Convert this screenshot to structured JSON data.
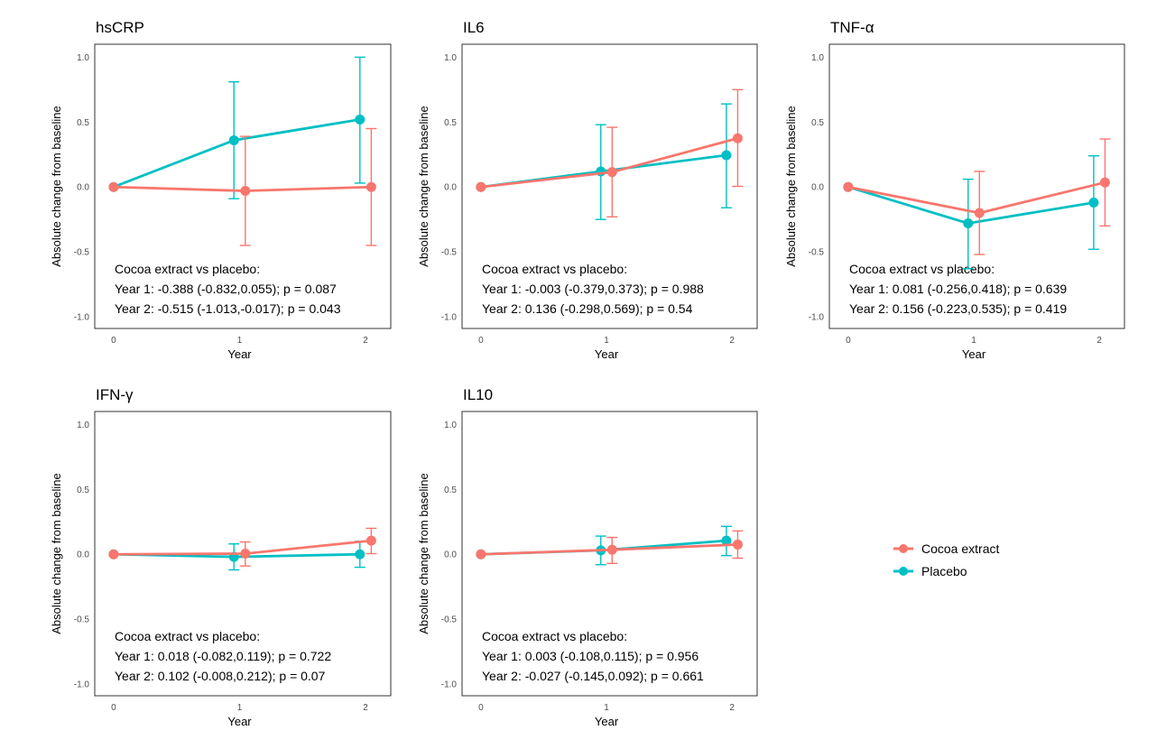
{
  "chart_data": {
    "type": "line",
    "legend": {
      "position": "right",
      "entries": [
        {
          "name": "Cocoa extract",
          "color": "#F8766D"
        },
        {
          "name": "Placebo",
          "color": "#00BFC4"
        }
      ]
    },
    "panels": [
      {
        "title": "hsCRP",
        "xlabel": "Year",
        "ylabel": "Absolute change from baseline",
        "x_ticks": [
          "0",
          "1",
          "2"
        ],
        "y_ticks": [
          "1.0",
          "0.5",
          "0.0",
          "-0.5",
          "-1.0"
        ],
        "ylim": [
          -1.09,
          1.1
        ],
        "xlim": [
          -0.15,
          2.2
        ],
        "series": [
          {
            "name": "Cocoa extract",
            "x": [
              0,
              1,
              2
            ],
            "y": [
              0,
              -0.03,
              0.0
            ],
            "ci_low": [
              null,
              -0.45,
              -0.45
            ],
            "ci_high": [
              null,
              0.39,
              0.45
            ]
          },
          {
            "name": "Placebo",
            "x": [
              0,
              1,
              2
            ],
            "y": [
              0,
              0.36,
              0.52
            ],
            "ci_low": [
              null,
              -0.09,
              0.03
            ],
            "ci_high": [
              null,
              0.81,
              1.0
            ]
          }
        ],
        "annotation": [
          "Cocoa extract vs placebo:",
          "Year 1: -0.388 (-0.832,0.055); p = 0.087",
          "Year 2: -0.515 (-1.013,-0.017); p = 0.043"
        ]
      },
      {
        "title": "IL6",
        "xlabel": "Year",
        "ylabel": "Absolute change from baseline",
        "x_ticks": [
          "0",
          "1",
          "2"
        ],
        "y_ticks": [
          "1.0",
          "0.5",
          "0.0",
          "-0.5",
          "-1.0"
        ],
        "ylim": [
          -1.09,
          1.1
        ],
        "xlim": [
          -0.15,
          2.2
        ],
        "series": [
          {
            "name": "Cocoa extract",
            "x": [
              0,
              1,
              2
            ],
            "y": [
              0,
              0.115,
              0.375
            ],
            "ci_low": [
              null,
              -0.23,
              0.005
            ],
            "ci_high": [
              null,
              0.46,
              0.75
            ]
          },
          {
            "name": "Placebo",
            "x": [
              0,
              1,
              2
            ],
            "y": [
              0,
              0.12,
              0.245
            ],
            "ci_low": [
              null,
              -0.25,
              -0.16
            ],
            "ci_high": [
              null,
              0.48,
              0.64
            ]
          }
        ],
        "annotation": [
          "Cocoa extract vs placebo:",
          "Year 1: -0.003 (-0.379,0.373); p = 0.988",
          "Year 2: 0.136 (-0.298,0.569); p = 0.54"
        ]
      },
      {
        "title": "TNF-α",
        "xlabel": "Year",
        "ylabel": "Absolute change from baseline",
        "x_ticks": [
          "0",
          "1",
          "2"
        ],
        "y_ticks": [
          "1.0",
          "0.5",
          "0.0",
          "-0.5",
          "-1.0"
        ],
        "ylim": [
          -1.09,
          1.1
        ],
        "xlim": [
          -0.15,
          2.2
        ],
        "series": [
          {
            "name": "Cocoa extract",
            "x": [
              0,
              1,
              2
            ],
            "y": [
              0,
              -0.2,
              0.035
            ],
            "ci_low": [
              null,
              -0.52,
              -0.3
            ],
            "ci_high": [
              null,
              0.12,
              0.37
            ]
          },
          {
            "name": "Placebo",
            "x": [
              0,
              1,
              2
            ],
            "y": [
              0,
              -0.28,
              -0.12
            ],
            "ci_low": [
              null,
              -0.63,
              -0.48
            ],
            "ci_high": [
              null,
              0.06,
              0.24
            ]
          }
        ],
        "annotation": [
          "Cocoa extract vs placebo:",
          "Year 1: 0.081 (-0.256,0.418); p = 0.639",
          "Year 2: 0.156 (-0.223,0.535); p = 0.419"
        ]
      },
      {
        "title": "IFN-γ",
        "xlabel": "Year",
        "ylabel": "Absolute change from baseline",
        "x_ticks": [
          "0",
          "1",
          "2"
        ],
        "y_ticks": [
          "1.0",
          "0.5",
          "0.0",
          "-0.5",
          "-1.0"
        ],
        "ylim": [
          -1.09,
          1.1
        ],
        "xlim": [
          -0.15,
          2.2
        ],
        "series": [
          {
            "name": "Cocoa extract",
            "x": [
              0,
              1,
              2
            ],
            "y": [
              0,
              0.005,
              0.105
            ],
            "ci_low": [
              null,
              -0.09,
              0.005
            ],
            "ci_high": [
              null,
              0.095,
              0.2
            ]
          },
          {
            "name": "Placebo",
            "x": [
              0,
              1,
              2
            ],
            "y": [
              0,
              -0.02,
              0.0
            ],
            "ci_low": [
              null,
              -0.12,
              -0.1
            ],
            "ci_high": [
              null,
              0.08,
              0.1
            ]
          }
        ],
        "annotation": [
          "Cocoa extract vs placebo:",
          "Year 1: 0.018 (-0.082,0.119); p = 0.722",
          "Year 2: 0.102 (-0.008,0.212); p = 0.07"
        ]
      },
      {
        "title": "IL10",
        "xlabel": "Year",
        "ylabel": "Absolute change from baseline",
        "x_ticks": [
          "0",
          "1",
          "2"
        ],
        "y_ticks": [
          "1.0",
          "0.5",
          "0.0",
          "-0.5",
          "-1.0"
        ],
        "ylim": [
          -1.09,
          1.1
        ],
        "xlim": [
          -0.15,
          2.2
        ],
        "series": [
          {
            "name": "Cocoa extract",
            "x": [
              0,
              1,
              2
            ],
            "y": [
              0,
              0.035,
              0.075
            ],
            "ci_low": [
              null,
              -0.07,
              -0.03
            ],
            "ci_high": [
              null,
              0.13,
              0.18
            ]
          },
          {
            "name": "Placebo",
            "x": [
              0,
              1,
              2
            ],
            "y": [
              0,
              0.03,
              0.105
            ],
            "ci_low": [
              null,
              -0.08,
              -0.01
            ],
            "ci_high": [
              null,
              0.14,
              0.215
            ]
          }
        ],
        "annotation": [
          "Cocoa extract vs placebo:",
          "Year 1: 0.003 (-0.108,0.115); p = 0.956",
          "Year 2: -0.027 (-0.145,0.092); p = 0.661"
        ]
      }
    ]
  }
}
